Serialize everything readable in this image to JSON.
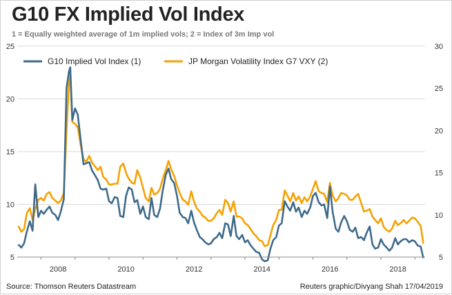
{
  "chart_data": {
    "type": "line",
    "title": "G10 FX Implied Vol Index",
    "subtitle": "1 = Equally weighted average of 1m implied vols; 2 = Index of 3m Imp vol",
    "source": "Source: Thomson Reuters Datastream",
    "credit": "Reuters graphic/Divyang Shah 17/04/2019",
    "xlim": [
      2007.3,
      2019.3
    ],
    "x_ticks": [
      2008,
      2010,
      2012,
      2014,
      2016,
      2018
    ],
    "x_tick_labels": [
      "2008",
      "2010",
      "2012",
      "2014",
      "2016",
      "2018"
    ],
    "y_left": {
      "range": [
        5,
        25
      ],
      "ticks": [
        5,
        10,
        15,
        20,
        25
      ],
      "tick_labels": [
        "5",
        "10",
        "15",
        "20",
        "25"
      ]
    },
    "y_right": {
      "range": [
        5,
        30
      ],
      "ticks": [
        5,
        10,
        15,
        20,
        25,
        30
      ],
      "tick_labels": [
        "5",
        "10",
        "15",
        "20",
        "25",
        "30"
      ]
    },
    "grid": "horizontal",
    "legend_position": "top-left",
    "series": [
      {
        "name": "G10 Implied Vol Index (1)",
        "axis": "left",
        "color": "#3e6a8a",
        "points": [
          [
            2007.33,
            6.2
          ],
          [
            2007.42,
            5.9
          ],
          [
            2007.5,
            6.3
          ],
          [
            2007.58,
            7.4
          ],
          [
            2007.67,
            8.4
          ],
          [
            2007.75,
            7.5
          ],
          [
            2007.83,
            11.9
          ],
          [
            2007.92,
            8.8
          ],
          [
            2008.0,
            9.4
          ],
          [
            2008.08,
            9.1
          ],
          [
            2008.17,
            9.5
          ],
          [
            2008.25,
            9.8
          ],
          [
            2008.33,
            9.2
          ],
          [
            2008.42,
            9.0
          ],
          [
            2008.5,
            8.5
          ],
          [
            2008.58,
            9.3
          ],
          [
            2008.67,
            10.5
          ],
          [
            2008.75,
            21.0
          ],
          [
            2008.82,
            22.6
          ],
          [
            2008.86,
            23.0
          ],
          [
            2008.92,
            18.0
          ],
          [
            2009.0,
            19.1
          ],
          [
            2009.08,
            18.5
          ],
          [
            2009.17,
            16.0
          ],
          [
            2009.25,
            13.8
          ],
          [
            2009.33,
            13.9
          ],
          [
            2009.42,
            14.0
          ],
          [
            2009.5,
            13.2
          ],
          [
            2009.58,
            12.8
          ],
          [
            2009.67,
            12.3
          ],
          [
            2009.75,
            11.5
          ],
          [
            2009.83,
            11.4
          ],
          [
            2009.92,
            11.5
          ],
          [
            2010.0,
            10.3
          ],
          [
            2010.08,
            10.1
          ],
          [
            2010.17,
            10.7
          ],
          [
            2010.25,
            10.6
          ],
          [
            2010.33,
            8.9
          ],
          [
            2010.42,
            8.8
          ],
          [
            2010.5,
            10.8
          ],
          [
            2010.58,
            11.6
          ],
          [
            2010.67,
            11.4
          ],
          [
            2010.75,
            10.2
          ],
          [
            2010.83,
            10.4
          ],
          [
            2010.92,
            9.1
          ],
          [
            2011.0,
            9.8
          ],
          [
            2011.08,
            8.8
          ],
          [
            2011.17,
            8.6
          ],
          [
            2011.25,
            10.6
          ],
          [
            2011.33,
            9.0
          ],
          [
            2011.42,
            8.8
          ],
          [
            2011.5,
            9.6
          ],
          [
            2011.58,
            11.3
          ],
          [
            2011.67,
            12.8
          ],
          [
            2011.75,
            13.4
          ],
          [
            2011.83,
            12.4
          ],
          [
            2011.92,
            12.0
          ],
          [
            2012.0,
            10.8
          ],
          [
            2012.08,
            9.2
          ],
          [
            2012.17,
            8.8
          ],
          [
            2012.25,
            8.7
          ],
          [
            2012.33,
            8.2
          ],
          [
            2012.42,
            9.4
          ],
          [
            2012.5,
            8.3
          ],
          [
            2012.58,
            7.6
          ],
          [
            2012.67,
            6.9
          ],
          [
            2012.75,
            6.7
          ],
          [
            2012.83,
            6.4
          ],
          [
            2012.92,
            6.2
          ],
          [
            2013.0,
            6.3
          ],
          [
            2013.08,
            6.7
          ],
          [
            2013.17,
            6.9
          ],
          [
            2013.25,
            7.3
          ],
          [
            2013.33,
            6.8
          ],
          [
            2013.42,
            8.2
          ],
          [
            2013.5,
            8.1
          ],
          [
            2013.58,
            7.0
          ],
          [
            2013.67,
            8.9
          ],
          [
            2013.75,
            7.0
          ],
          [
            2013.83,
            6.7
          ],
          [
            2013.92,
            7.1
          ],
          [
            2014.0,
            6.4
          ],
          [
            2014.08,
            6.6
          ],
          [
            2014.17,
            6.1
          ],
          [
            2014.25,
            5.8
          ],
          [
            2014.33,
            5.5
          ],
          [
            2014.42,
            5.4
          ],
          [
            2014.5,
            4.8
          ],
          [
            2014.58,
            4.6
          ],
          [
            2014.67,
            4.7
          ],
          [
            2014.75,
            5.8
          ],
          [
            2014.83,
            6.6
          ],
          [
            2014.92,
            6.9
          ],
          [
            2015.0,
            8.0
          ],
          [
            2015.08,
            8.2
          ],
          [
            2015.17,
            10.3
          ],
          [
            2015.25,
            9.8
          ],
          [
            2015.33,
            9.4
          ],
          [
            2015.42,
            10.2
          ],
          [
            2015.5,
            9.3
          ],
          [
            2015.58,
            9.7
          ],
          [
            2015.67,
            8.8
          ],
          [
            2015.75,
            9.4
          ],
          [
            2015.83,
            9.1
          ],
          [
            2015.92,
            9.7
          ],
          [
            2016.0,
            10.8
          ],
          [
            2016.08,
            11.1
          ],
          [
            2016.17,
            10.2
          ],
          [
            2016.25,
            9.9
          ],
          [
            2016.33,
            10.0
          ],
          [
            2016.42,
            8.7
          ],
          [
            2016.5,
            11.7
          ],
          [
            2016.58,
            9.3
          ],
          [
            2016.67,
            7.7
          ],
          [
            2016.75,
            7.4
          ],
          [
            2016.83,
            8.3
          ],
          [
            2016.92,
            8.9
          ],
          [
            2017.0,
            8.4
          ],
          [
            2017.08,
            7.6
          ],
          [
            2017.17,
            7.4
          ],
          [
            2017.25,
            7.8
          ],
          [
            2017.33,
            6.8
          ],
          [
            2017.42,
            6.9
          ],
          [
            2017.5,
            6.6
          ],
          [
            2017.58,
            7.3
          ],
          [
            2017.67,
            7.9
          ],
          [
            2017.75,
            6.2
          ],
          [
            2017.83,
            5.8
          ],
          [
            2017.92,
            5.9
          ],
          [
            2018.0,
            6.7
          ],
          [
            2018.08,
            6.2
          ],
          [
            2018.17,
            5.9
          ],
          [
            2018.25,
            5.6
          ],
          [
            2018.33,
            5.9
          ],
          [
            2018.42,
            6.8
          ],
          [
            2018.5,
            6.2
          ],
          [
            2018.58,
            6.5
          ],
          [
            2018.67,
            6.7
          ],
          [
            2018.75,
            6.7
          ],
          [
            2018.83,
            6.4
          ],
          [
            2018.92,
            6.6
          ],
          [
            2019.0,
            6.5
          ],
          [
            2019.08,
            6.1
          ],
          [
            2019.17,
            6.0
          ],
          [
            2019.25,
            4.9
          ]
        ]
      },
      {
        "name": "JP Morgan Volatility Index G7 VXY (2)",
        "axis": "right",
        "color": "#f5a100",
        "points": [
          [
            2007.33,
            8.7
          ],
          [
            2007.42,
            8.0
          ],
          [
            2007.5,
            8.3
          ],
          [
            2007.58,
            10.2
          ],
          [
            2007.67,
            10.8
          ],
          [
            2007.75,
            9.4
          ],
          [
            2007.83,
            10.7
          ],
          [
            2007.92,
            11.8
          ],
          [
            2008.0,
            12.0
          ],
          [
            2008.08,
            11.7
          ],
          [
            2008.17,
            12.5
          ],
          [
            2008.25,
            12.7
          ],
          [
            2008.33,
            12.0
          ],
          [
            2008.42,
            11.7
          ],
          [
            2008.5,
            11.4
          ],
          [
            2008.58,
            11.7
          ],
          [
            2008.67,
            12.6
          ],
          [
            2008.75,
            20.0
          ],
          [
            2008.82,
            25.5
          ],
          [
            2008.86,
            26.5
          ],
          [
            2008.92,
            21.0
          ],
          [
            2009.0,
            20.8
          ],
          [
            2009.08,
            20.4
          ],
          [
            2009.17,
            18.2
          ],
          [
            2009.25,
            16.6
          ],
          [
            2009.33,
            16.3
          ],
          [
            2009.42,
            17.0
          ],
          [
            2009.5,
            16.2
          ],
          [
            2009.58,
            15.8
          ],
          [
            2009.67,
            15.3
          ],
          [
            2009.75,
            15.7
          ],
          [
            2009.83,
            14.5
          ],
          [
            2009.92,
            14.2
          ],
          [
            2010.0,
            13.6
          ],
          [
            2010.08,
            13.6
          ],
          [
            2010.17,
            13.7
          ],
          [
            2010.25,
            13.7
          ],
          [
            2010.33,
            15.7
          ],
          [
            2010.42,
            16.1
          ],
          [
            2010.5,
            15.0
          ],
          [
            2010.58,
            14.3
          ],
          [
            2010.67,
            13.8
          ],
          [
            2010.75,
            13.7
          ],
          [
            2010.83,
            15.3
          ],
          [
            2010.92,
            14.4
          ],
          [
            2011.0,
            13.2
          ],
          [
            2011.08,
            12.0
          ],
          [
            2011.17,
            11.6
          ],
          [
            2011.25,
            13.2
          ],
          [
            2011.33,
            12.4
          ],
          [
            2011.42,
            12.6
          ],
          [
            2011.5,
            13.1
          ],
          [
            2011.58,
            14.3
          ],
          [
            2011.67,
            15.3
          ],
          [
            2011.75,
            16.4
          ],
          [
            2011.83,
            15.4
          ],
          [
            2011.92,
            14.6
          ],
          [
            2012.0,
            13.5
          ],
          [
            2012.08,
            12.6
          ],
          [
            2012.17,
            11.8
          ],
          [
            2012.25,
            11.6
          ],
          [
            2012.33,
            11.2
          ],
          [
            2012.42,
            12.8
          ],
          [
            2012.5,
            11.6
          ],
          [
            2012.58,
            10.8
          ],
          [
            2012.67,
            10.4
          ],
          [
            2012.75,
            9.9
          ],
          [
            2012.83,
            9.7
          ],
          [
            2012.92,
            9.3
          ],
          [
            2013.0,
            9.3
          ],
          [
            2013.08,
            9.6
          ],
          [
            2013.17,
            10.2
          ],
          [
            2013.25,
            10.6
          ],
          [
            2013.33,
            10.0
          ],
          [
            2013.42,
            11.8
          ],
          [
            2013.5,
            11.4
          ],
          [
            2013.58,
            10.4
          ],
          [
            2013.67,
            11.6
          ],
          [
            2013.75,
            9.8
          ],
          [
            2013.83,
            9.8
          ],
          [
            2013.92,
            9.6
          ],
          [
            2014.0,
            9.0
          ],
          [
            2014.08,
            8.8
          ],
          [
            2014.17,
            8.3
          ],
          [
            2014.25,
            7.8
          ],
          [
            2014.33,
            7.5
          ],
          [
            2014.42,
            7.0
          ],
          [
            2014.5,
            6.9
          ],
          [
            2014.58,
            6.3
          ],
          [
            2014.67,
            6.4
          ],
          [
            2014.75,
            7.6
          ],
          [
            2014.83,
            8.8
          ],
          [
            2014.92,
            9.4
          ],
          [
            2015.0,
            10.6
          ],
          [
            2015.08,
            10.6
          ],
          [
            2015.17,
            12.9
          ],
          [
            2015.25,
            12.3
          ],
          [
            2015.33,
            11.6
          ],
          [
            2015.42,
            12.6
          ],
          [
            2015.5,
            11.7
          ],
          [
            2015.58,
            12.2
          ],
          [
            2015.67,
            11.4
          ],
          [
            2015.75,
            12.1
          ],
          [
            2015.83,
            11.6
          ],
          [
            2015.92,
            12.2
          ],
          [
            2016.0,
            13.1
          ],
          [
            2016.08,
            14.0
          ],
          [
            2016.17,
            12.8
          ],
          [
            2016.25,
            12.6
          ],
          [
            2016.33,
            12.5
          ],
          [
            2016.42,
            11.5
          ],
          [
            2016.5,
            13.8
          ],
          [
            2016.58,
            12.3
          ],
          [
            2016.67,
            11.6
          ],
          [
            2016.75,
            12.0
          ],
          [
            2016.83,
            12.6
          ],
          [
            2016.92,
            12.5
          ],
          [
            2017.0,
            12.3
          ],
          [
            2017.08,
            11.8
          ],
          [
            2017.17,
            11.8
          ],
          [
            2017.25,
            12.2
          ],
          [
            2017.33,
            12.5
          ],
          [
            2017.42,
            11.4
          ],
          [
            2017.5,
            10.4
          ],
          [
            2017.58,
            10.5
          ],
          [
            2017.67,
            10.7
          ],
          [
            2017.75,
            9.8
          ],
          [
            2017.83,
            9.4
          ],
          [
            2017.92,
            9.0
          ],
          [
            2018.0,
            9.6
          ],
          [
            2018.08,
            8.6
          ],
          [
            2018.17,
            8.2
          ],
          [
            2018.25,
            8.0
          ],
          [
            2018.33,
            8.4
          ],
          [
            2018.42,
            9.3
          ],
          [
            2018.5,
            8.8
          ],
          [
            2018.58,
            9.0
          ],
          [
            2018.67,
            9.4
          ],
          [
            2018.75,
            9.0
          ],
          [
            2018.83,
            9.3
          ],
          [
            2018.92,
            9.7
          ],
          [
            2019.0,
            9.6
          ],
          [
            2019.08,
            9.2
          ],
          [
            2019.17,
            8.7
          ],
          [
            2019.25,
            6.6
          ]
        ]
      }
    ]
  }
}
